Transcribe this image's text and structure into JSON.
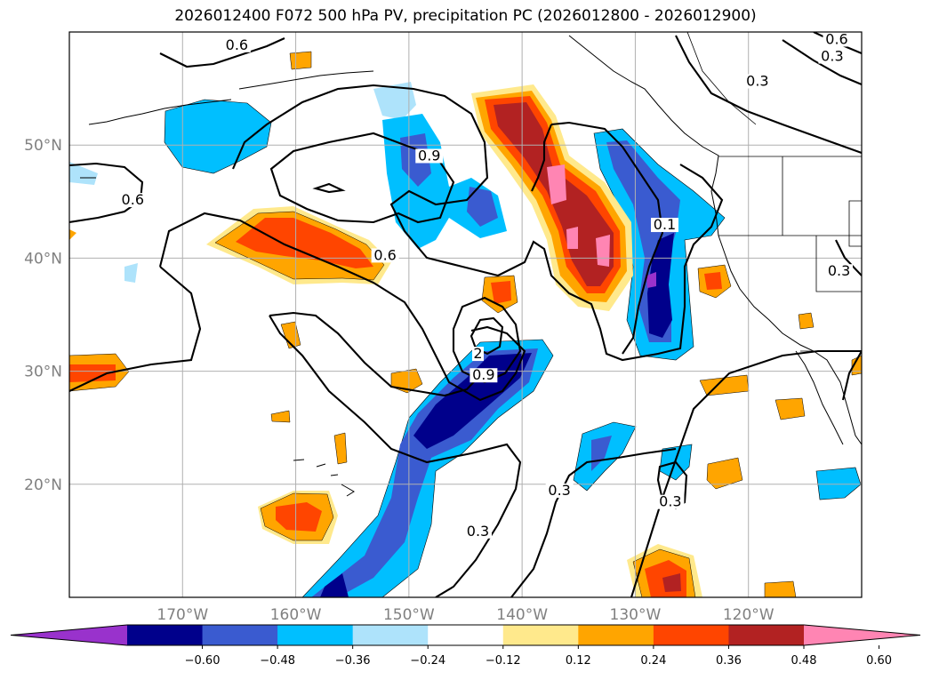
{
  "title": "2026012400 F072 500 hPa PV, precipitation PC (2026012800 - 2026012900)",
  "map": {
    "lon_range": [
      -180,
      -110
    ],
    "lat_range": [
      10,
      60
    ],
    "lon_ticks": [
      {
        "lon": -170,
        "label": "170°W"
      },
      {
        "lon": -160,
        "label": "160°W"
      },
      {
        "lon": -150,
        "label": "150°W"
      },
      {
        "lon": -140,
        "label": "140°W"
      },
      {
        "lon": -130,
        "label": "130°W"
      },
      {
        "lon": -120,
        "label": "120°W"
      }
    ],
    "lat_ticks": [
      {
        "lat": 20,
        "label": "20°N"
      },
      {
        "lat": 30,
        "label": "30°N"
      },
      {
        "lat": 40,
        "label": "40°N"
      },
      {
        "lat": 50,
        "label": "50°N"
      }
    ],
    "grid": true,
    "gridline_color": "#b0b0b0"
  },
  "pv_contour_labels": [
    {
      "text": "0.6",
      "lon": -165.2,
      "lat": 58.6
    },
    {
      "text": "0.6",
      "lon": -174.4,
      "lat": 44.9
    },
    {
      "text": "0.9",
      "lon": -148.2,
      "lat": 48.8
    },
    {
      "text": "0.6",
      "lon": -152.1,
      "lat": 40.0
    },
    {
      "text": "2",
      "lon": -143.9,
      "lat": 31.3
    },
    {
      "text": "0.9",
      "lon": -143.4,
      "lat": 29.4
    },
    {
      "text": "0.3",
      "lon": -143.9,
      "lat": 15.6
    },
    {
      "text": "0.3",
      "lon": -136.7,
      "lat": 19.2
    },
    {
      "text": "0.3",
      "lon": -126.9,
      "lat": 18.2
    },
    {
      "text": "0.3",
      "lon": -119.2,
      "lat": 55.4
    },
    {
      "text": "0.3",
      "lon": -112.6,
      "lat": 57.6
    },
    {
      "text": "0.6",
      "lon": -112.2,
      "lat": 59.1
    },
    {
      "text": "0.1",
      "lon": -127.4,
      "lat": 42.7
    },
    {
      "text": "0.3",
      "lon": -112.0,
      "lat": 38.6
    }
  ],
  "colorbar": {
    "ticks": [
      "−0.60",
      "−0.48",
      "−0.36",
      "−0.24",
      "−0.12",
      "0.12",
      "0.24",
      "0.36",
      "0.48",
      "0.60"
    ],
    "colors": [
      "#9932cc",
      "#00008b",
      "#3a5bd0",
      "#00bfff",
      "#aee3fb",
      "#ffffff",
      "#ffe98c",
      "#ffa500",
      "#ff4500",
      "#b22222",
      "#ff85b3"
    ]
  }
}
